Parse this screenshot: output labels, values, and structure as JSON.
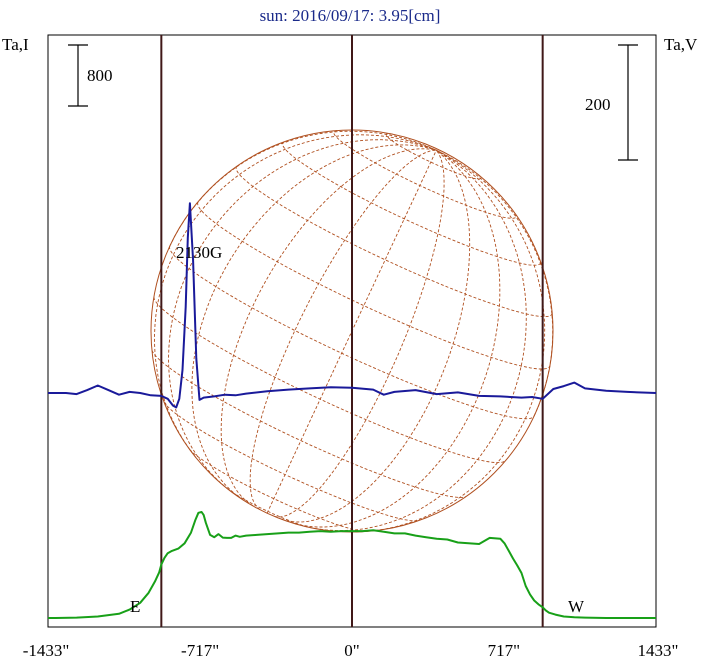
{
  "title": "sun: 2016/09/17: 3.95[cm]",
  "colors": {
    "title": "#1a2a8a",
    "stokes_i": "#18a018",
    "stokes_v": "#1a1a9a",
    "disk": "#b05020",
    "limb_lines": "#401818",
    "frame": "#000000"
  },
  "left_axis_label": "Ta,I",
  "right_axis_label": "Ta,V",
  "left_scale_label": "800",
  "right_scale_label": "200",
  "east_label": "E",
  "west_label": "W",
  "source_label": "2130G",
  "chart_data": {
    "type": "line",
    "title": "sun: 2016/09/17: 3.95[cm]",
    "x_unit": "arcsec",
    "xlim": [
      -1435,
      1435
    ],
    "xticks": [
      {
        "value": -1433,
        "label": "-1433\""
      },
      {
        "value": -717,
        "label": "-717\""
      },
      {
        "value": 0,
        "label": "0\""
      },
      {
        "value": 717,
        "label": "717\""
      },
      {
        "value": 1433,
        "label": "1433\""
      }
    ],
    "limb_x": [
      -900,
      900
    ],
    "scale_bar_left": {
      "label": "800",
      "value": 800
    },
    "scale_bar_right": {
      "label": "200",
      "value": 200
    },
    "series": [
      {
        "key": "I",
        "color": "#18a018",
        "x": [
          -1435,
          -1400,
          -1300,
          -1200,
          -1100,
          -1050,
          -1000,
          -960,
          -930,
          -910,
          -900,
          -885,
          -870,
          -850,
          -820,
          -790,
          -760,
          -740,
          -725,
          -710,
          -700,
          -690,
          -670,
          -650,
          -630,
          -610,
          -590,
          -570,
          -550,
          -530,
          -500,
          -450,
          -400,
          -350,
          -300,
          -250,
          -200,
          -150,
          -100,
          -50,
          0,
          50,
          100,
          150,
          200,
          250,
          300,
          350,
          400,
          450,
          500,
          550,
          600,
          650,
          700,
          720,
          740,
          760,
          780,
          800,
          820,
          840,
          860,
          880,
          900,
          915,
          930,
          960,
          1000,
          1050,
          1100,
          1200,
          1300,
          1400,
          1435
        ],
        "y": [
          0,
          0,
          5,
          20,
          55,
          110,
          200,
          330,
          480,
          600,
          700,
          790,
          850,
          880,
          910,
          980,
          1120,
          1280,
          1380,
          1390,
          1350,
          1250,
          1090,
          1060,
          1100,
          1055,
          1050,
          1050,
          1080,
          1065,
          1080,
          1090,
          1100,
          1110,
          1120,
          1120,
          1130,
          1140,
          1130,
          1140,
          1140,
          1140,
          1150,
          1130,
          1110,
          1110,
          1080,
          1060,
          1040,
          1030,
          990,
          980,
          970,
          1050,
          1040,
          980,
          880,
          780,
          690,
          590,
          420,
          310,
          230,
          180,
          140,
          100,
          70,
          45,
          20,
          10,
          5,
          0,
          0,
          0,
          0
        ]
      },
      {
        "key": "V",
        "color": "#1a1a9a",
        "x": [
          -1435,
          -1350,
          -1300,
          -1250,
          -1200,
          -1150,
          -1100,
          -1050,
          -1000,
          -950,
          -900,
          -870,
          -845,
          -830,
          -815,
          -800,
          -785,
          -775,
          -765,
          -750,
          -735,
          -720,
          -700,
          -650,
          -600,
          -550,
          -500,
          -400,
          -300,
          -200,
          -100,
          0,
          100,
          150,
          200,
          300,
          400,
          500,
          600,
          700,
          800,
          850,
          900,
          950,
          1000,
          1050,
          1100,
          1200,
          1300,
          1435
        ],
        "y": [
          0,
          0,
          -2,
          5,
          13,
          5,
          -3,
          2,
          0,
          -4,
          -5,
          -10,
          -22,
          -25,
          -10,
          40,
          150,
          270,
          330,
          230,
          60,
          -12,
          -8,
          -6,
          -3,
          -4,
          -1,
          3,
          6,
          8,
          10,
          9,
          6,
          -3,
          2,
          5,
          -2,
          1,
          -5,
          -6,
          -8,
          -7,
          -10,
          7,
          12,
          18,
          8,
          4,
          2,
          0
        ]
      }
    ]
  }
}
